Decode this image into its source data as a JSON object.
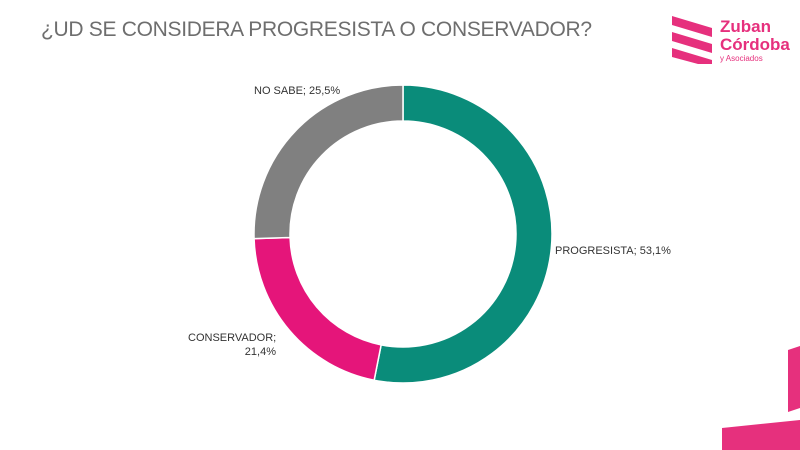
{
  "title": "¿UD SE CONSIDERA PROGRESISTA O CONSERVADOR?",
  "logo": {
    "line1": "Zuban",
    "line2": "Córdoba",
    "line3": "y Asociados",
    "color": "#e6307d"
  },
  "chart_data": {
    "type": "pie",
    "style": "donut",
    "title": "¿UD SE CONSIDERA PROGRESISTA O CONSERVADOR?",
    "slices": [
      {
        "label": "PROGRESISTA",
        "value": 53.1,
        "value_text": "53,1%",
        "display": "PROGRESISTA; 53,1%",
        "color": "#0a8c7a"
      },
      {
        "label": "CONSERVADOR",
        "value": 21.4,
        "value_text": "21,4%",
        "display_line1": "CONSERVADOR;",
        "display_line2": "21,4%",
        "color": "#e5157a"
      },
      {
        "label": "NO SABE",
        "value": 25.5,
        "value_text": "25,5%",
        "display": "NO SABE; 25,5%",
        "color": "#808080"
      }
    ],
    "legend": "none"
  }
}
